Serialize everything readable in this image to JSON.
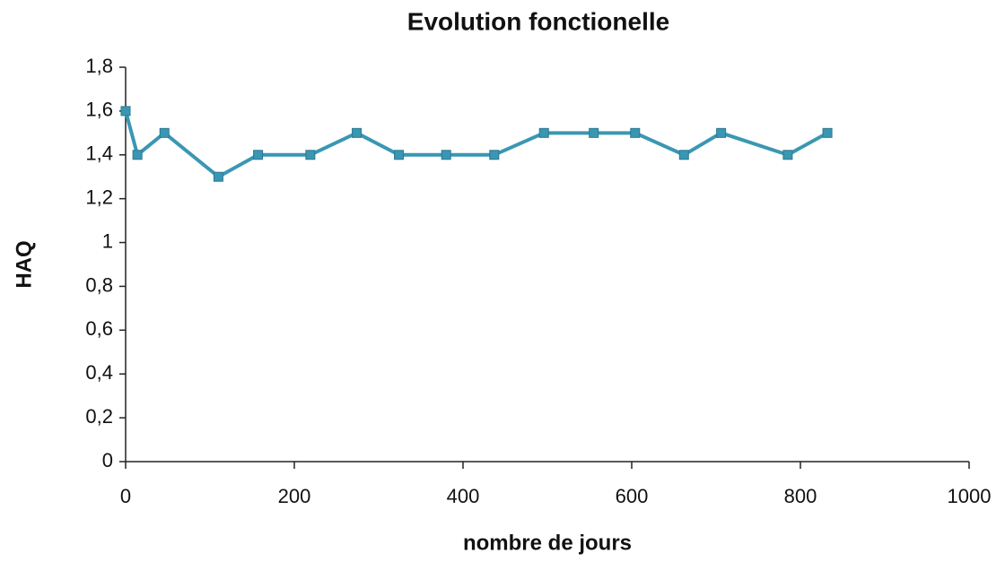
{
  "chart_data": {
    "type": "line",
    "title": "Evolution fonctionelle",
    "x_label": "nombre de jours",
    "y_label": "HAQ",
    "series": [
      {
        "name": "HAQ",
        "color": "#3a97b3",
        "x": [
          0,
          14,
          46,
          110,
          157,
          219,
          274,
          324,
          380,
          437,
          496,
          555,
          604,
          662,
          706,
          785,
          832
        ],
        "values": [
          1.6,
          1.4,
          1.5,
          1.3,
          1.4,
          1.4,
          1.5,
          1.4,
          1.4,
          1.4,
          1.5,
          1.5,
          1.5,
          1.4,
          1.5,
          1.4,
          1.5
        ]
      }
    ],
    "xlim": [
      0,
      1000
    ],
    "xticks": [
      0,
      200,
      400,
      600,
      800,
      1000
    ],
    "ylim": [
      0,
      1.8
    ],
    "yticks": [
      0,
      {
        "value": 0.2,
        "label": "0,2"
      },
      {
        "value": 0.4,
        "label": "0,4"
      },
      {
        "value": 0.6,
        "label": "0,6"
      },
      {
        "value": 0.8,
        "label": "0,8"
      },
      1,
      {
        "value": 1.2,
        "label": "1,2"
      },
      {
        "value": 1.4,
        "label": "1,4"
      },
      {
        "value": 1.6,
        "label": "1,6"
      },
      {
        "value": 1.8,
        "label": "1,8"
      }
    ],
    "grid": false
  }
}
